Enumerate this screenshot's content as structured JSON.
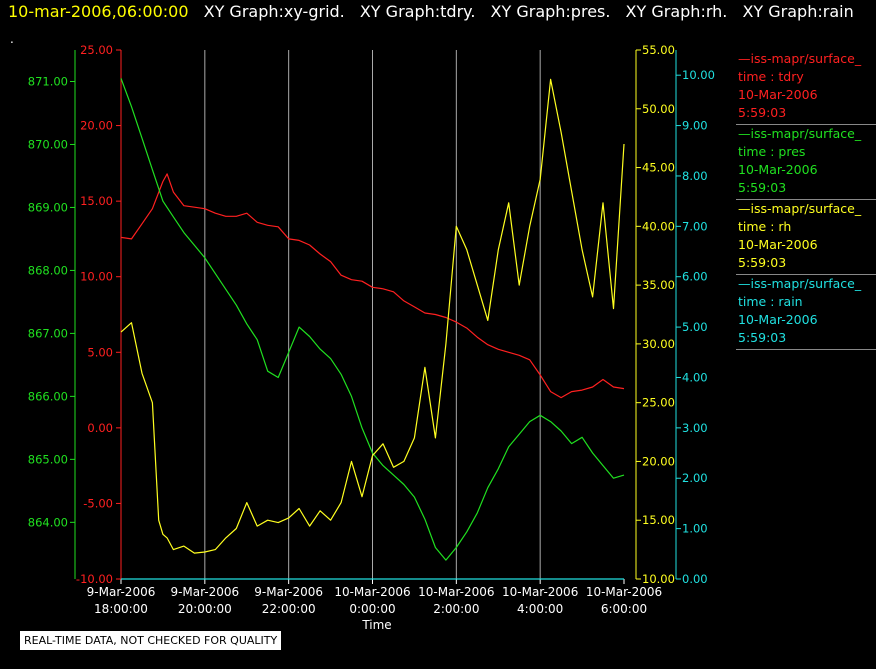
{
  "header": {
    "timestamp": "10-mar-2006,06:00:00",
    "graphs": [
      "XY Graph:xy-grid.",
      "XY Graph:tdry.",
      "XY Graph:pres.",
      "XY Graph:rh.",
      "XY Graph:rain"
    ]
  },
  "corner_mark": ".",
  "disclaimer": "REAL-TIME DATA, NOT CHECKED FOR QUALITY",
  "legend": [
    {
      "source": "—iss-mapr/surface_",
      "var": "time : tdry",
      "date": "10-Mar-2006",
      "time": "5:59:03",
      "color": "#ff2020"
    },
    {
      "source": "—iss-mapr/surface_",
      "var": "time : pres",
      "date": "10-Mar-2006",
      "time": "5:59:03",
      "color": "#20e020"
    },
    {
      "source": "—iss-mapr/surface_",
      "var": "time : rh",
      "date": "10-Mar-2006",
      "time": "5:59:03",
      "color": "#ffff20"
    },
    {
      "source": "—iss-mapr/surface_",
      "var": "time : rain",
      "date": "10-Mar-2006",
      "time": "5:59:03",
      "color": "#20e0e0"
    }
  ],
  "chart_data": {
    "type": "line",
    "xlabel": "Time",
    "x_ticks": [
      {
        "date": "9-Mar-2006",
        "time": "18:00:00"
      },
      {
        "date": "9-Mar-2006",
        "time": "20:00:00"
      },
      {
        "date": "9-Mar-2006",
        "time": "22:00:00"
      },
      {
        "date": "10-Mar-2006",
        "time": "0:00:00"
      },
      {
        "date": "10-Mar-2006",
        "time": "2:00:00"
      },
      {
        "date": "10-Mar-2006",
        "time": "4:00:00"
      },
      {
        "date": "10-Mar-2006",
        "time": "6:00:00"
      }
    ],
    "x_range_hours": [
      0,
      12
    ],
    "vertical_grid": true,
    "axes": {
      "tdry": {
        "color": "#ff2020",
        "range": [
          -10,
          25
        ],
        "ticks": [
          "-10.00",
          "-5.00",
          "0.00",
          "5.00",
          "10.00",
          "15.00",
          "20.00",
          "25.00"
        ]
      },
      "pres": {
        "color": "#20e020",
        "range": [
          863.1,
          871.5
        ],
        "ticks": [
          "864.00",
          "865.00",
          "866.00",
          "867.00",
          "868.00",
          "869.00",
          "870.00",
          "871.00"
        ]
      },
      "rh": {
        "color": "#ffff20",
        "range": [
          10,
          55
        ],
        "ticks": [
          "10.00",
          "15.00",
          "20.00",
          "25.00",
          "30.00",
          "35.00",
          "40.00",
          "45.00",
          "50.00",
          "55.00"
        ]
      },
      "rain": {
        "color": "#20e0e0",
        "range": [
          0,
          10.5
        ],
        "ticks": [
          "0.00",
          "1.00",
          "2.00",
          "3.00",
          "4.00",
          "5.00",
          "6.00",
          "7.00",
          "8.00",
          "9.00",
          "10.00"
        ]
      }
    },
    "series": [
      {
        "name": "tdry",
        "axis": "tdry",
        "x": [
          0,
          0.25,
          0.5,
          0.75,
          1.0,
          1.1,
          1.25,
          1.5,
          1.75,
          2.0,
          2.25,
          2.5,
          2.75,
          3.0,
          3.25,
          3.5,
          3.75,
          4.0,
          4.25,
          4.5,
          4.75,
          5.0,
          5.25,
          5.5,
          5.75,
          6.0,
          6.25,
          6.5,
          6.75,
          7.0,
          7.25,
          7.5,
          7.75,
          8.0,
          8.25,
          8.5,
          8.75,
          9.0,
          9.25,
          9.5,
          9.75,
          10.0,
          10.25,
          10.5,
          10.75,
          11.0,
          11.25,
          11.5,
          11.75,
          12.0
        ],
        "y": [
          12.6,
          12.5,
          13.5,
          14.5,
          16.3,
          16.8,
          15.6,
          14.7,
          14.6,
          14.5,
          14.2,
          14.0,
          14.0,
          14.2,
          13.6,
          13.4,
          13.3,
          12.5,
          12.4,
          12.1,
          11.5,
          11.0,
          10.1,
          9.8,
          9.7,
          9.3,
          9.2,
          9.0,
          8.4,
          8.0,
          7.6,
          7.5,
          7.3,
          7.0,
          6.6,
          6.0,
          5.5,
          5.2,
          5.0,
          4.8,
          4.5,
          3.5,
          2.4,
          2.0,
          2.4,
          2.5,
          2.7,
          3.2,
          2.7,
          2.6
        ]
      },
      {
        "name": "pres",
        "axis": "pres",
        "x": [
          0,
          0.25,
          0.5,
          0.75,
          1.0,
          1.25,
          1.5,
          1.75,
          2.0,
          2.25,
          2.5,
          2.75,
          3.0,
          3.25,
          3.5,
          3.75,
          4.0,
          4.25,
          4.5,
          4.75,
          5.0,
          5.25,
          5.5,
          5.75,
          6.0,
          6.25,
          6.5,
          6.75,
          7.0,
          7.25,
          7.5,
          7.75,
          8.0,
          8.25,
          8.5,
          8.75,
          9.0,
          9.25,
          9.5,
          9.75,
          10.0,
          10.25,
          10.5,
          10.75,
          11.0,
          11.25,
          11.5,
          11.75,
          12.0
        ],
        "y": [
          871.05,
          870.6,
          870.1,
          869.6,
          869.1,
          868.85,
          868.6,
          868.4,
          868.2,
          867.95,
          867.7,
          867.45,
          867.15,
          866.9,
          866.4,
          866.3,
          866.7,
          867.1,
          866.95,
          866.75,
          866.6,
          866.35,
          866.0,
          865.5,
          865.1,
          864.9,
          864.75,
          864.6,
          864.4,
          864.05,
          863.6,
          863.4,
          863.6,
          863.85,
          864.15,
          864.55,
          864.85,
          865.2,
          865.4,
          865.6,
          865.7,
          865.6,
          865.45,
          865.25,
          865.35,
          865.1,
          864.9,
          864.7,
          864.75
        ]
      },
      {
        "name": "rh",
        "axis": "rh",
        "x": [
          0,
          0.25,
          0.5,
          0.75,
          0.9,
          1.0,
          1.1,
          1.25,
          1.5,
          1.75,
          2.0,
          2.25,
          2.5,
          2.75,
          3.0,
          3.25,
          3.5,
          3.75,
          4.0,
          4.25,
          4.5,
          4.75,
          5.0,
          5.25,
          5.5,
          5.75,
          6.0,
          6.25,
          6.5,
          6.75,
          7.0,
          7.25,
          7.5,
          7.75,
          8.0,
          8.25,
          8.5,
          8.75,
          9.0,
          9.25,
          9.5,
          9.75,
          10.0,
          10.25,
          10.5,
          10.75,
          11.0,
          11.25,
          11.5,
          11.75,
          12.0
        ],
        "y": [
          31.0,
          31.8,
          27.5,
          25.0,
          15.0,
          13.8,
          13.5,
          12.5,
          12.8,
          12.2,
          12.3,
          12.5,
          13.5,
          14.3,
          16.5,
          14.5,
          15.0,
          14.8,
          15.2,
          16.0,
          14.5,
          15.8,
          15.0,
          16.5,
          20.0,
          17.0,
          20.5,
          21.5,
          19.5,
          20.0,
          22.0,
          28.0,
          22.0,
          30.0,
          40.0,
          38.0,
          35.0,
          32.0,
          38.0,
          42.0,
          35.0,
          40.0,
          44.0,
          52.5,
          48.0,
          43.0,
          38.0,
          34.0,
          42.0,
          33.0,
          47.0
        ]
      },
      {
        "name": "rain",
        "axis": "rain",
        "x": [
          0,
          12
        ],
        "y": [
          0,
          0
        ]
      }
    ]
  }
}
